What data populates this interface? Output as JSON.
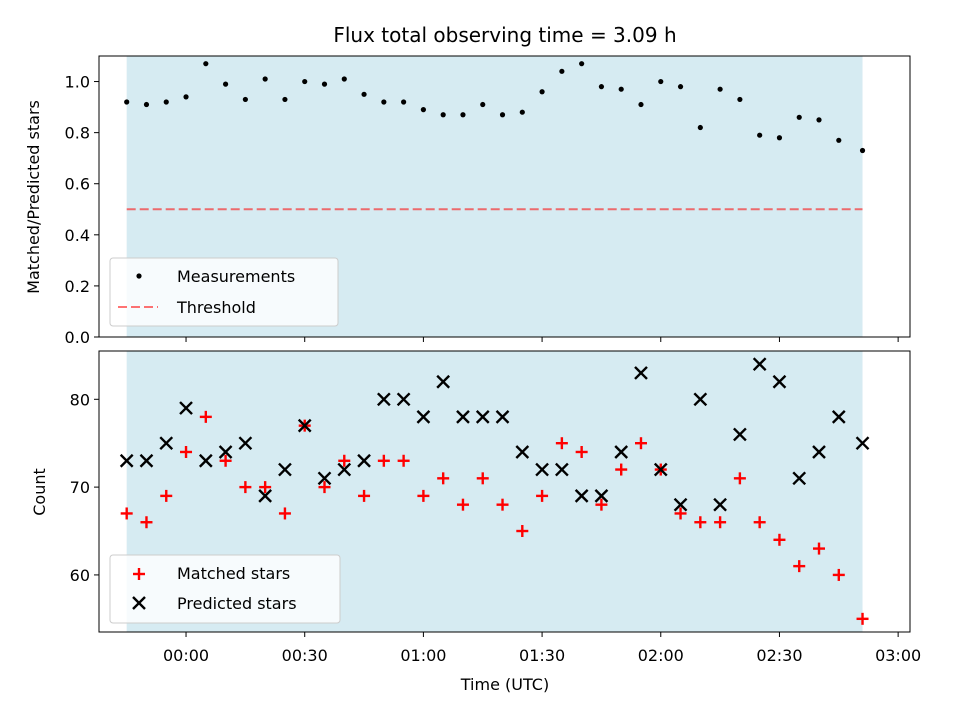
{
  "chart_data": [
    {
      "type": "scatter",
      "title": "Flux total observing time = 3.09 h",
      "ylabel": "Matched/Predicted stars",
      "ylim": [
        0,
        1.1
      ],
      "yticks": [
        "0.0",
        "0.2",
        "0.4",
        "0.6",
        "0.8",
        "1.0"
      ],
      "xlim": [
        "23:38",
        "03:03"
      ],
      "span": [
        "23:45",
        "02:51"
      ],
      "threshold": 0.5,
      "legend": {
        "placement": "lower-left",
        "entries": [
          "Measurements",
          "Threshold"
        ]
      },
      "colors": {
        "span": "#add8e6",
        "threshold": "#ff0000",
        "points": "#000000"
      },
      "series": [
        {
          "name": "Measurements",
          "x": [
            "23:45",
            "23:50",
            "23:55",
            "00:00",
            "00:05",
            "00:10",
            "00:15",
            "00:20",
            "00:25",
            "00:30",
            "00:35",
            "00:40",
            "00:45",
            "00:50",
            "00:55",
            "01:00",
            "01:05",
            "01:10",
            "01:15",
            "01:20",
            "01:25",
            "01:30",
            "01:35",
            "01:40",
            "01:45",
            "01:50",
            "01:55",
            "02:00",
            "02:05",
            "02:10",
            "02:15",
            "02:20",
            "02:25",
            "02:30",
            "02:35",
            "02:40",
            "02:45",
            "02:51"
          ],
          "values": [
            0.92,
            0.91,
            0.92,
            0.94,
            1.07,
            0.99,
            0.93,
            1.01,
            0.93,
            1.0,
            0.99,
            1.01,
            0.95,
            0.92,
            0.92,
            0.89,
            0.87,
            0.87,
            0.91,
            0.87,
            0.88,
            0.96,
            1.04,
            1.07,
            0.98,
            0.97,
            0.91,
            1.0,
            0.98,
            0.82,
            0.97,
            0.93,
            0.79,
            0.78,
            0.86,
            0.85,
            0.77,
            0.73
          ]
        }
      ]
    },
    {
      "type": "scatter",
      "xlabel": "Time (UTC)",
      "ylabel": "Count",
      "ylim": [
        53.5,
        85.5
      ],
      "yticks": [
        "60",
        "70",
        "80"
      ],
      "xticks": [
        "00:00",
        "00:30",
        "01:00",
        "01:30",
        "02:00",
        "02:30",
        "03:00"
      ],
      "xlim": [
        "23:38",
        "03:03"
      ],
      "span": [
        "23:45",
        "02:51"
      ],
      "legend": {
        "placement": "lower-left",
        "entries": [
          "Matched stars",
          "Predicted stars"
        ]
      },
      "colors": {
        "span": "#add8e6",
        "matched": "#ff0000",
        "predicted": "#000000"
      },
      "x": [
        "23:45",
        "23:50",
        "23:55",
        "00:00",
        "00:05",
        "00:10",
        "00:15",
        "00:20",
        "00:25",
        "00:30",
        "00:35",
        "00:40",
        "00:45",
        "00:50",
        "00:55",
        "01:00",
        "01:05",
        "01:10",
        "01:15",
        "01:20",
        "01:25",
        "01:30",
        "01:35",
        "01:40",
        "01:45",
        "01:50",
        "01:55",
        "02:00",
        "02:05",
        "02:10",
        "02:15",
        "02:20",
        "02:25",
        "02:30",
        "02:35",
        "02:40",
        "02:45",
        "02:51"
      ],
      "series": [
        {
          "name": "Matched stars",
          "marker": "plus",
          "values": [
            67,
            66,
            69,
            74,
            78,
            73,
            70,
            70,
            67,
            77,
            70,
            73,
            69,
            73,
            73,
            69,
            71,
            68,
            71,
            68,
            65,
            69,
            75,
            74,
            68,
            72,
            75,
            72,
            67,
            66,
            66,
            71,
            66,
            64,
            61,
            63,
            60,
            55
          ]
        },
        {
          "name": "Predicted stars",
          "marker": "x",
          "values": [
            73,
            73,
            75,
            79,
            73,
            74,
            75,
            69,
            72,
            77,
            71,
            72,
            73,
            80,
            80,
            78,
            82,
            78,
            78,
            78,
            74,
            72,
            72,
            69,
            69,
            74,
            83,
            72,
            68,
            80,
            68,
            76,
            84,
            82,
            71,
            74,
            78,
            75
          ]
        }
      ]
    }
  ]
}
